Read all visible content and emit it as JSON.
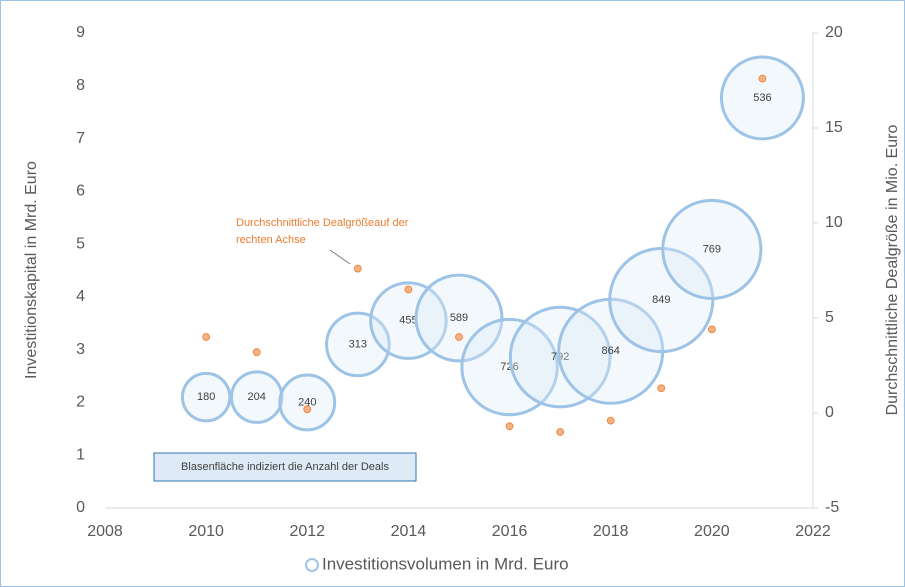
{
  "chart_data": {
    "type": "bubble",
    "x": [
      2010,
      2011,
      2012,
      2013,
      2014,
      2015,
      2016,
      2017,
      2018,
      2019,
      2020,
      2021
    ],
    "series": [
      {
        "name": "Investitionsvolumen in Mrd. Euro",
        "color": "#9dc3e6",
        "values": [
          2.1,
          2.1,
          2.0,
          3.1,
          3.55,
          3.6,
          2.67,
          2.86,
          2.97,
          3.94,
          4.9,
          7.77
        ],
        "sizes": [
          180,
          204,
          240,
          313,
          455,
          589,
          726,
          792,
          864,
          849,
          769,
          536
        ]
      },
      {
        "axis": "y2",
        "color": "#f4b183",
        "values": [
          4.0,
          3.2,
          0.2,
          7.6,
          6.5,
          4.0,
          -0.7,
          -1.0,
          -0.4,
          1.3,
          4.4,
          17.6
        ]
      }
    ],
    "ylabel": "Investitionskapital in Mrd. Euro",
    "y2label": "Durchschnittliche Dealgröße in Mio. Euro",
    "xlim": [
      2008,
      2022
    ],
    "xticks": [
      2008,
      2010,
      2012,
      2014,
      2016,
      2018,
      2020,
      2022
    ],
    "ylim": [
      0,
      9
    ],
    "yticks": [
      0,
      1,
      2,
      3,
      4,
      5,
      6,
      7,
      8,
      9
    ],
    "y2lim": [
      -5,
      20
    ],
    "y2ticks": [
      -5,
      0,
      5,
      10,
      15,
      20
    ],
    "annotations": [
      {
        "lines": [
          "Durchschnittliche Dealgrößeauf der",
          "rechten Achse"
        ]
      },
      {
        "text": "Blasenfläche indiziert die Anzahl der Deals"
      }
    ],
    "legend": "bottom"
  }
}
